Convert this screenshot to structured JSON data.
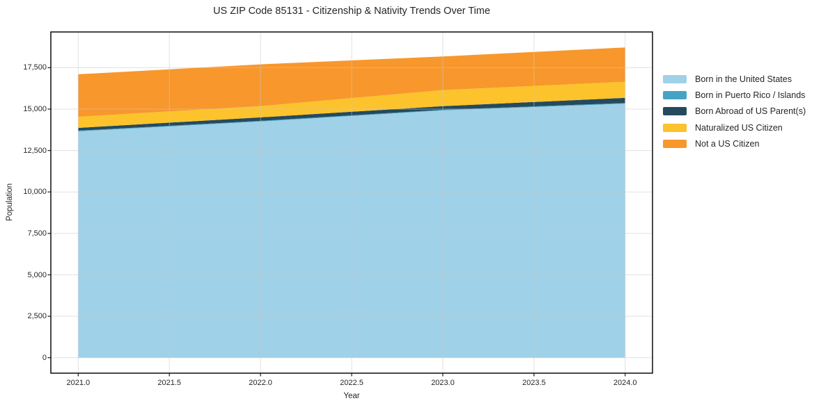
{
  "chart_data": {
    "type": "area",
    "stacked": true,
    "title": "US ZIP Code 85131 - Citizenship & Nativity Trends Over Time",
    "xlabel": "Year",
    "ylabel": "Population",
    "x": [
      2021,
      2022,
      2023,
      2024
    ],
    "series": [
      {
        "name": "Born in the United States",
        "color": "#9fd1e8",
        "values": [
          13660,
          14250,
          14920,
          15330
        ]
      },
      {
        "name": "Born in Puerto Rico / Islands",
        "color": "#45a3c4",
        "values": [
          40,
          40,
          40,
          40
        ]
      },
      {
        "name": "Born Abroad of US Parent(s)",
        "color": "#264a5d",
        "values": [
          170,
          210,
          220,
          310
        ]
      },
      {
        "name": "Naturalized US Citizen",
        "color": "#fdc32c",
        "values": [
          670,
          680,
          970,
          970
        ]
      },
      {
        "name": "Not a US Citizen",
        "color": "#f8982c",
        "values": [
          2560,
          2520,
          2030,
          2070
        ]
      }
    ],
    "xlim": [
      2020.85,
      2024.15
    ],
    "ylim": [
      -936,
      19656
    ],
    "x_ticks": {
      "values": [
        2021.0,
        2021.5,
        2022.0,
        2022.5,
        2023.0,
        2023.5,
        2024.0
      ],
      "labels": [
        "2021.0",
        "2021.5",
        "2022.0",
        "2022.5",
        "2023.0",
        "2023.5",
        "2024.0"
      ]
    },
    "y_ticks": {
      "values": [
        0,
        2500,
        5000,
        7500,
        10000,
        12500,
        15000,
        17500
      ],
      "labels": [
        "0",
        "2,500",
        "5,000",
        "7,500",
        "10,000",
        "12,500",
        "15,000",
        "17,500"
      ]
    },
    "grid": true,
    "legend_position": "right-top",
    "colors": {
      "spine": "#1a1a1a",
      "grid": "#c8c8c8",
      "text": "#262626",
      "background": "#ffffff"
    }
  }
}
